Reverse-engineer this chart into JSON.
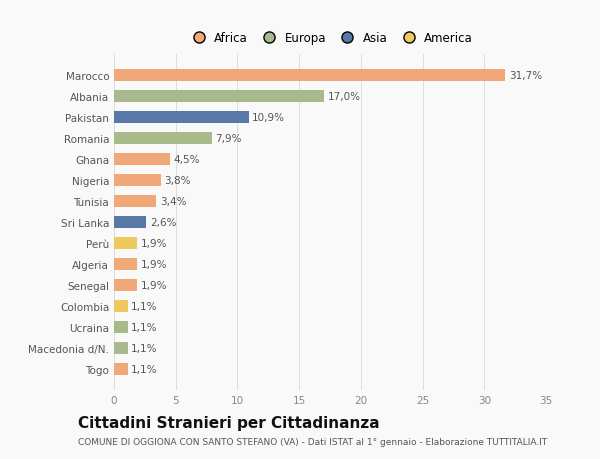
{
  "categories": [
    "Marocco",
    "Albania",
    "Pakistan",
    "Romania",
    "Ghana",
    "Nigeria",
    "Tunisia",
    "Sri Lanka",
    "Perù",
    "Algeria",
    "Senegal",
    "Colombia",
    "Ucraina",
    "Macedonia d/N.",
    "Togo"
  ],
  "values": [
    31.7,
    17.0,
    10.9,
    7.9,
    4.5,
    3.8,
    3.4,
    2.6,
    1.9,
    1.9,
    1.9,
    1.1,
    1.1,
    1.1,
    1.1
  ],
  "labels": [
    "31,7%",
    "17,0%",
    "10,9%",
    "7,9%",
    "4,5%",
    "3,8%",
    "3,4%",
    "2,6%",
    "1,9%",
    "1,9%",
    "1,9%",
    "1,1%",
    "1,1%",
    "1,1%",
    "1,1%"
  ],
  "colors": [
    "#f0a878",
    "#a8ba8c",
    "#5878a8",
    "#a8ba8c",
    "#f0a878",
    "#f0a878",
    "#f0a878",
    "#5878a8",
    "#f0c860",
    "#f0a878",
    "#f0a878",
    "#f0c860",
    "#a8ba8c",
    "#a8ba8c",
    "#f0a878"
  ],
  "legend_labels": [
    "Africa",
    "Europa",
    "Asia",
    "America"
  ],
  "legend_colors": [
    "#f0a878",
    "#a8ba8c",
    "#5878a8",
    "#f0c860"
  ],
  "title": "Cittadini Stranieri per Cittadinanza",
  "subtitle": "COMUNE DI OGGIONA CON SANTO STEFANO (VA) - Dati ISTAT al 1° gennaio - Elaborazione TUTTITALIA.IT",
  "xlim": [
    0,
    35
  ],
  "xticks": [
    0,
    5,
    10,
    15,
    20,
    25,
    30,
    35
  ],
  "bg_color": "#f9f9f9",
  "bar_height": 0.55,
  "label_fontsize": 7.5,
  "tick_fontsize": 7.5,
  "title_fontsize": 11,
  "subtitle_fontsize": 6.5
}
